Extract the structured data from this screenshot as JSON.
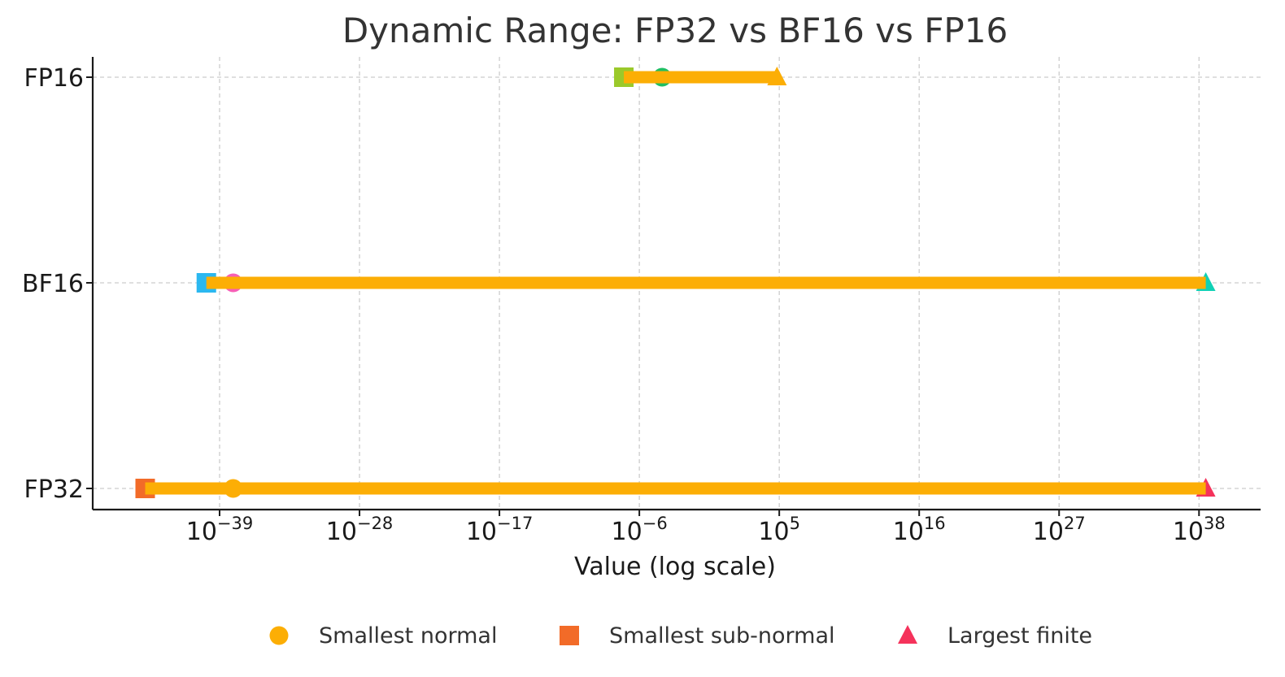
{
  "chart_data": {
    "type": "scatter",
    "title": "Dynamic Range: FP32 vs BF16 vs FP16",
    "xlabel": "Value (log scale)",
    "ylabel": "",
    "xscale": "log",
    "xlim_exponent": [
      -49,
      41
    ],
    "x_ticks": [
      {
        "base": "10",
        "exp": "−39",
        "value": -39
      },
      {
        "base": "10",
        "exp": "−28",
        "value": -28
      },
      {
        "base": "10",
        "exp": "−17",
        "value": -17
      },
      {
        "base": "10",
        "exp": "−6",
        "value": -6
      },
      {
        "base": "10",
        "exp": "5",
        "value": 5
      },
      {
        "base": "10",
        "exp": "16",
        "value": 16
      },
      {
        "base": "10",
        "exp": "27",
        "value": 27
      },
      {
        "base": "10",
        "exp": "38",
        "value": 38
      }
    ],
    "categories": [
      "FP32",
      "BF16",
      "FP16"
    ],
    "formats": [
      {
        "name": "FP32",
        "smallest_subnormal_log10": -44.85,
        "smallest_normal_log10": -37.93,
        "largest_finite_log10": 38.53,
        "colors": {
          "subnormal": "#f26b28",
          "normal": "#fcae05",
          "largest": "#f5325b",
          "range": "#fcae05"
        }
      },
      {
        "name": "BF16",
        "smallest_subnormal_log10": -40.04,
        "smallest_normal_log10": -37.93,
        "largest_finite_log10": 38.53,
        "colors": {
          "subnormal": "#2bb8f0",
          "normal": "#f75fb5",
          "largest": "#10d1b5",
          "range": "#fcae05"
        }
      },
      {
        "name": "FP16",
        "smallest_subnormal_log10": -7.22,
        "smallest_normal_log10": -4.21,
        "largest_finite_log10": 4.82,
        "colors": {
          "subnormal": "#9bc92a",
          "normal": "#1fbf62",
          "largest": "#fcae05",
          "range": "#fcae05"
        }
      }
    ],
    "legend": {
      "position": "bottom",
      "entries": [
        {
          "label": "Smallest normal",
          "marker": "circle",
          "color": "#fcae05"
        },
        {
          "label": "Smallest sub-normal",
          "marker": "square",
          "color": "#f26b28"
        },
        {
          "label": "Largest finite",
          "marker": "triangle",
          "color": "#f5325b"
        }
      ]
    },
    "grid": true
  }
}
